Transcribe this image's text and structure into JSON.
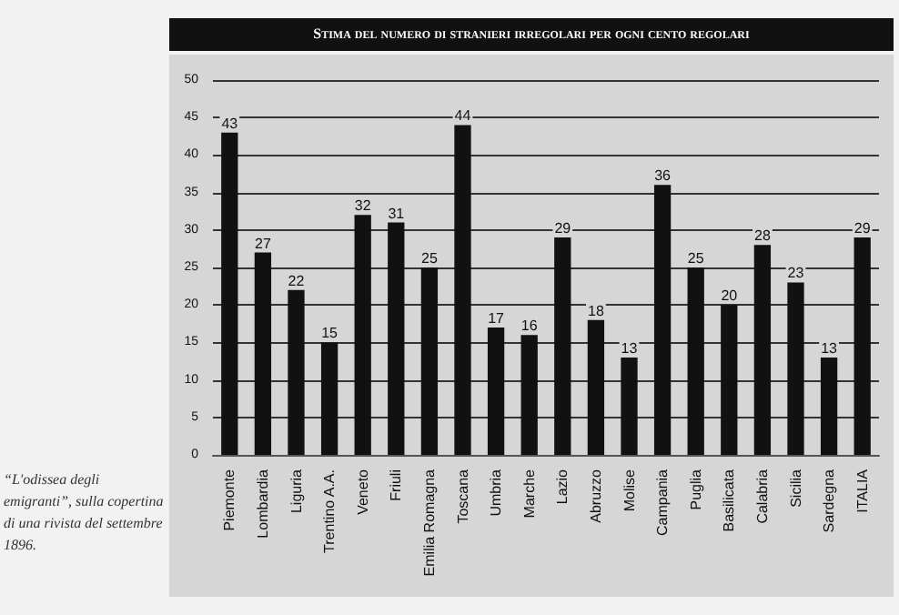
{
  "chart_data": {
    "type": "bar",
    "title": "Stima del numero di stranieri irregolari per ogni cento regolari",
    "categories": [
      "Piemonte",
      "Lombardia",
      "Liguria",
      "Trentino A.A.",
      "Veneto",
      "Friuli",
      "Emilia Romagna",
      "Toscana",
      "Umbria",
      "Marche",
      "Lazio",
      "Abruzzo",
      "Molise",
      "Campania",
      "Puglia",
      "Basilicata",
      "Calabria",
      "Sicilia",
      "Sardegna",
      "ITALIA"
    ],
    "values": [
      43,
      27,
      22,
      15,
      32,
      31,
      25,
      44,
      17,
      16,
      29,
      18,
      13,
      36,
      25,
      20,
      28,
      23,
      13,
      29
    ],
    "color": "#111111",
    "ylim": [
      0,
      50
    ],
    "yticks": [
      0,
      5,
      10,
      15,
      20,
      25,
      30,
      35,
      40,
      45,
      50
    ],
    "grid": "y",
    "data_labels": true,
    "annotations": [
      "“L'odissea degli emigranti”, sulla copertina di una rivista del settembre 1896."
    ]
  }
}
